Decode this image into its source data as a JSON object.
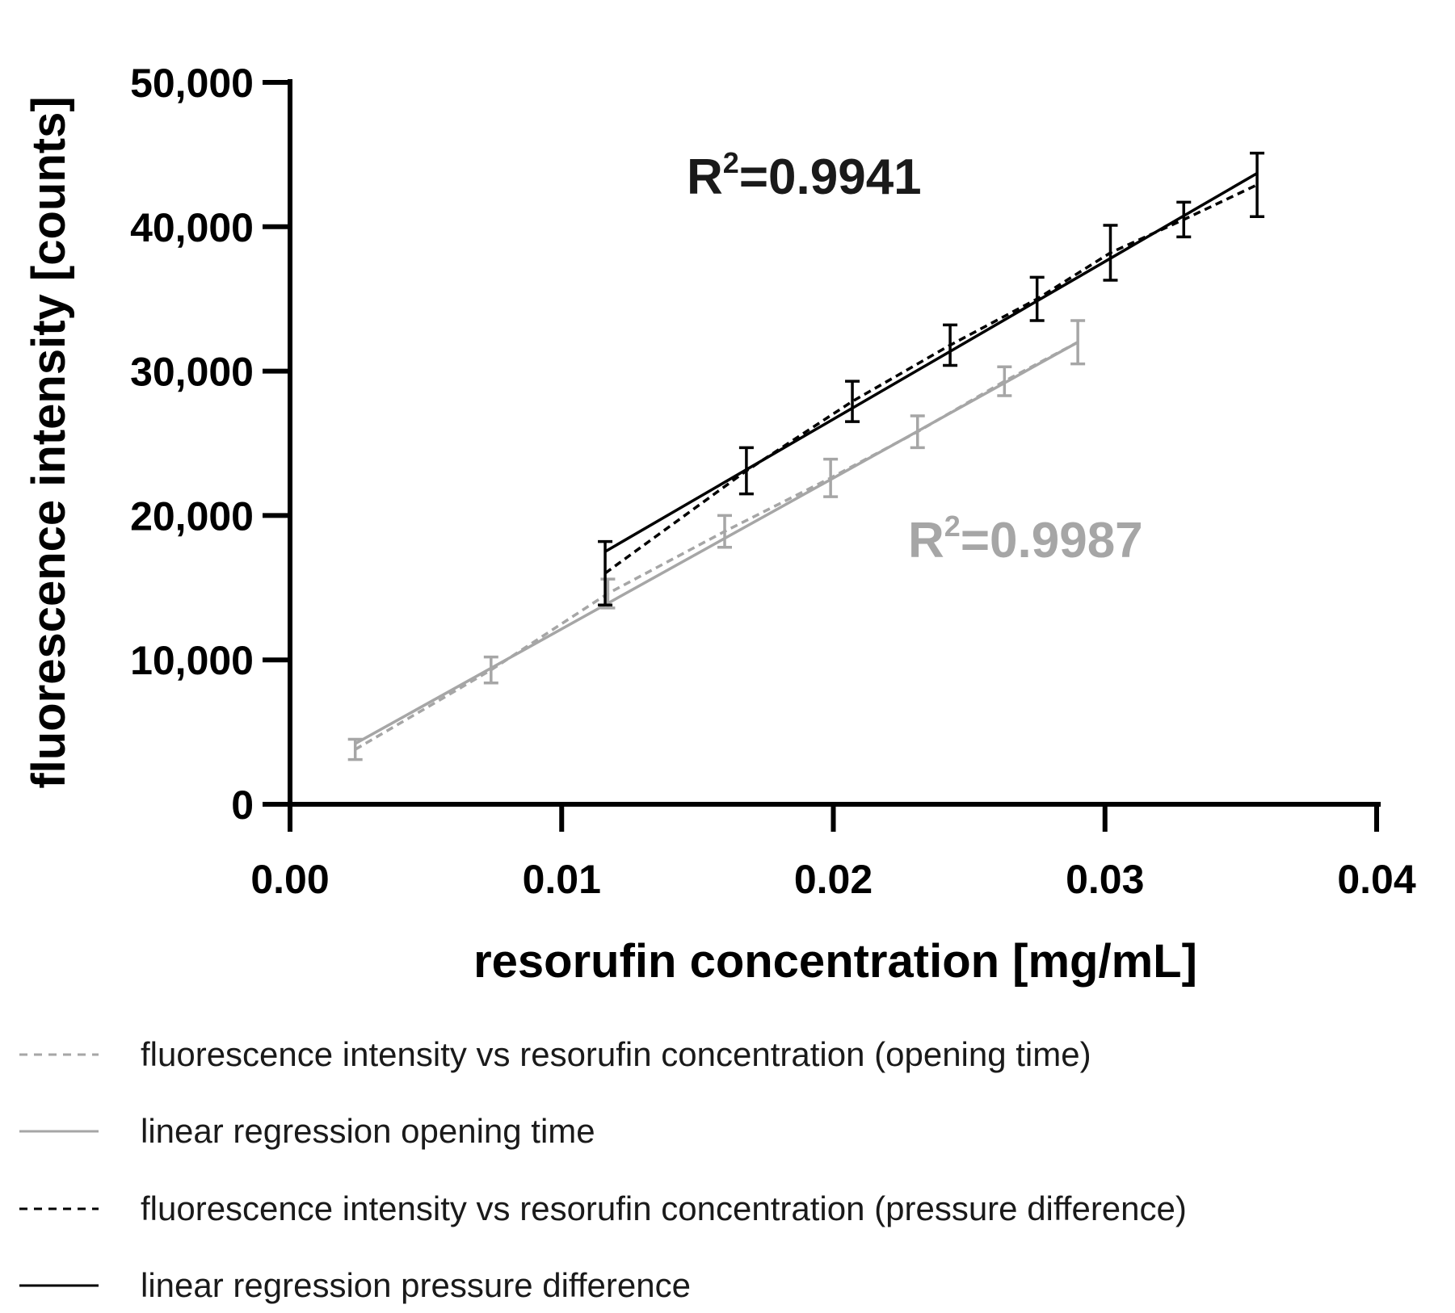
{
  "chart_data": {
    "type": "line",
    "title": "",
    "xlabel": "resorufin concentration [mg/mL]",
    "ylabel": "fluorescence intensity [counts]",
    "xlim": [
      0,
      0.04
    ],
    "ylim": [
      0,
      50000
    ],
    "x_ticks": [
      {
        "value": 0.0,
        "label": "0.00"
      },
      {
        "value": 0.01,
        "label": "0.01"
      },
      {
        "value": 0.02,
        "label": "0.02"
      },
      {
        "value": 0.03,
        "label": "0.03"
      },
      {
        "value": 0.04,
        "label": "0.04"
      }
    ],
    "y_ticks": [
      {
        "value": 0,
        "label": "0"
      },
      {
        "value": 10000,
        "label": "10,000"
      },
      {
        "value": 20000,
        "label": "20,000"
      },
      {
        "value": 30000,
        "label": "30,000"
      },
      {
        "value": 40000,
        "label": "40,000"
      },
      {
        "value": 50000,
        "label": "50,000"
      }
    ],
    "grid": false,
    "legend_position": "bottom",
    "series": [
      {
        "name": "fluorescence intensity vs resorufin concentration (opening time)",
        "color": "#a6a6a6",
        "style": "dashed",
        "kind": "data",
        "x": [
          0.0024,
          0.0074,
          0.0117,
          0.016,
          0.0199,
          0.0231,
          0.0263,
          0.029
        ],
        "y": [
          3800,
          9300,
          14600,
          18900,
          22600,
          25800,
          29300,
          32000
        ],
        "err": [
          700,
          900,
          1000,
          1100,
          1300,
          1100,
          1000,
          1500
        ]
      },
      {
        "name": "linear regression opening time",
        "color": "#a6a6a6",
        "style": "solid",
        "kind": "fit",
        "x": [
          0.0024,
          0.029
        ],
        "y": [
          4200,
          32000
        ]
      },
      {
        "name": "fluorescence intensity vs resorufin concentration (pressure difference)",
        "color": "#000000",
        "style": "dashed",
        "kind": "data",
        "x": [
          0.0116,
          0.0168,
          0.0207,
          0.0243,
          0.0275,
          0.0302,
          0.0329,
          0.0356
        ],
        "y": [
          16000,
          23100,
          27900,
          31800,
          35000,
          38200,
          40500,
          42900
        ],
        "err": [
          2200,
          1600,
          1400,
          1400,
          1500,
          1900,
          1200,
          2200
        ]
      },
      {
        "name": "linear regression pressure difference",
        "color": "#000000",
        "style": "solid",
        "kind": "fit",
        "x": [
          0.0116,
          0.0356
        ],
        "y": [
          17500,
          43700
        ]
      }
    ],
    "annotations": [
      {
        "base": "R",
        "sup": "2",
        "rest": "=0.9941",
        "color": "#1a1a1a"
      },
      {
        "base": "R",
        "sup": "2",
        "rest": "=0.9987",
        "color": "#a6a6a6"
      }
    ]
  }
}
